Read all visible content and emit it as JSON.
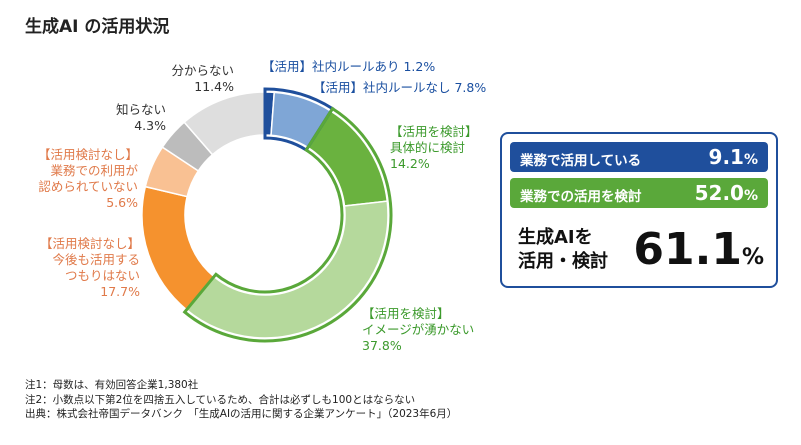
{
  "title": "生成AI の活用状況",
  "chart_data": {
    "type": "pie",
    "categories": [
      "【活用】社内ルールあり",
      "【活用】社内ルールなし",
      "【活用を検討】具体的に検討",
      "【活用を検討】イメージが湧かない",
      "【活用検討なし】今後も活用するつもりはない",
      "【活用検討なし】業務での利用が認められていない",
      "知らない",
      "分からない"
    ],
    "values": [
      1.2,
      7.8,
      14.2,
      37.8,
      17.7,
      5.6,
      4.3,
      11.4
    ],
    "colors": [
      "#1f4f9c",
      "#7fa6d6",
      "#6ab23f",
      "#b5d99c",
      "#f5922e",
      "#f9c193",
      "#bcbcbc",
      "#dedede"
    ],
    "highlight": {
      "blue": "#1f4f9c",
      "green": "#5aa83a"
    }
  },
  "labels": {
    "rule_yes": {
      "line1": "【活用】社内ルールあり 1.2%"
    },
    "rule_no": {
      "line1": "【活用】社内ルールなし 7.8%"
    },
    "concrete": {
      "line1": "【活用を検討】",
      "line2": "具体的に検討",
      "line3": "14.2%"
    },
    "image": {
      "line1": "【活用を検討】",
      "line2": "イメージが湧かない",
      "line3": "37.8%"
    },
    "no_plan": {
      "line1": "【活用検討なし】",
      "line2": "今後も活用する",
      "line3": "つもりはない",
      "line4": "17.7%"
    },
    "not_allowed": {
      "line1": "【活用検討なし】",
      "line2": "業務での利用が",
      "line3": "認められていない",
      "line4": "5.6%"
    },
    "dont_know_of": {
      "line1": "知らない",
      "line2": "4.3%"
    },
    "unsure": {
      "line1": "分からない",
      "line2": "11.4%"
    }
  },
  "summary": {
    "using_label": "業務で活用している",
    "using_value": "9.1",
    "considering_label": "業務での活用を検討",
    "considering_value": "52.0",
    "total_label_1": "生成AIを",
    "total_label_2": "活用・検討",
    "total_value": "61.1",
    "percent": "%"
  },
  "notes": {
    "n1": "注1：母数は、有効回答企業1,380社",
    "n2": "注2：小数点以下第2位を四捨五入しているため、合計は必ずしも100とはならない",
    "source": "出典：株式会社帝国データバンク　「生成AIの活用に関する企業アンケート」（2023年6月）"
  }
}
